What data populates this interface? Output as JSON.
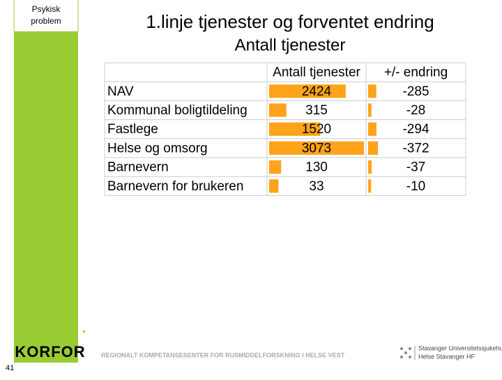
{
  "sidebar": {
    "label_line1": "Psykisk",
    "label_line2": "problem"
  },
  "header": {
    "title": "1.linje tjenester og forventet endring",
    "subtitle": "Antall tjenester"
  },
  "table": {
    "columns": [
      "",
      "Antall tjenester",
      "+/- endring"
    ],
    "rows": [
      [
        "NAV",
        2424,
        -285
      ],
      [
        "Kommunal boligtildeling",
        315,
        -28
      ],
      [
        "Fastlege",
        1520,
        -294
      ],
      [
        "Helse og omsorg",
        3073,
        -372
      ],
      [
        "Barnevern",
        130,
        -37
      ],
      [
        "Barnevern for brukeren",
        33,
        -10
      ]
    ],
    "bar_color": "#ffa31a"
  },
  "footer": {
    "page_number": "41",
    "logo": "KORFOR",
    "center_text": "REGIONALT KOMPETANSESENTER FOR RUSMIDDELFORSKNING I HELSE VEST",
    "hospital_line1": "Stavanger Universitetssjukehus",
    "hospital_line2": "Helse Stavanger HF"
  }
}
